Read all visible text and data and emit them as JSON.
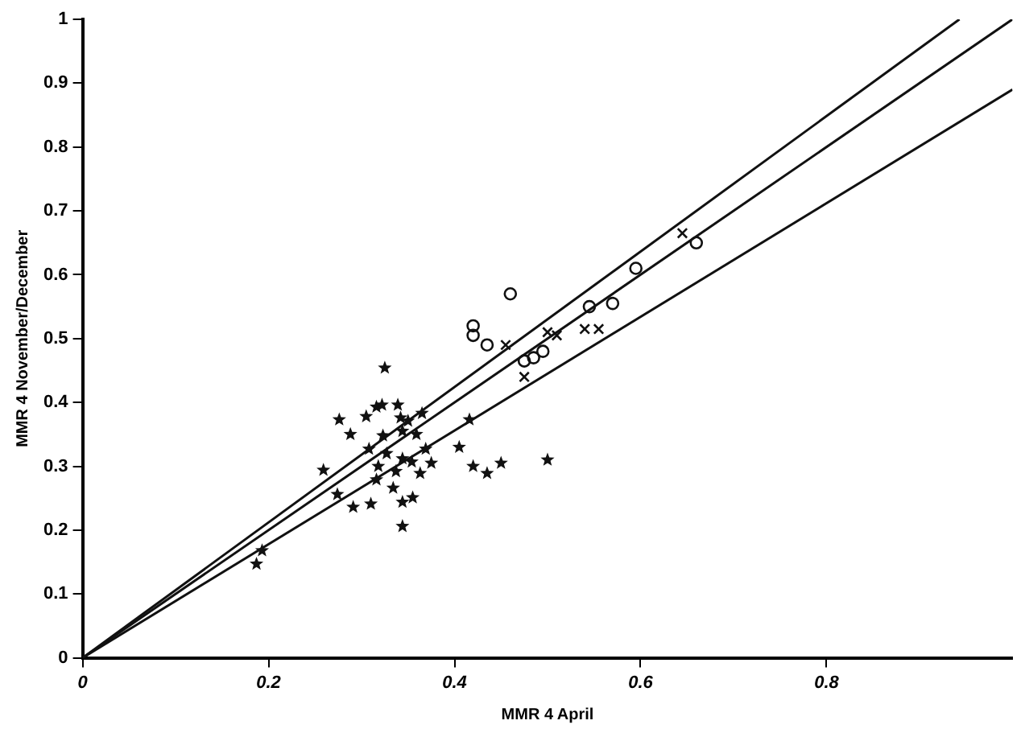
{
  "chart_data": {
    "type": "scatter",
    "xlabel": "MMR 4 April",
    "ylabel": "MMR 4 November/December",
    "xlim": [
      0,
      1
    ],
    "ylim": [
      0,
      1
    ],
    "xticks": [
      0,
      0.2,
      0.4,
      0.6,
      0.8
    ],
    "yticks": [
      0,
      0.1,
      0.2,
      0.3,
      0.4,
      0.5,
      0.6,
      0.7,
      0.8,
      0.9,
      1
    ],
    "grid": false,
    "legend": false,
    "series": [
      {
        "type": "scatter",
        "marker": "star",
        "color": "#111111",
        "x": [
          0.325,
          0.276,
          0.305,
          0.316,
          0.322,
          0.339,
          0.288,
          0.342,
          0.35,
          0.365,
          0.416,
          0.323,
          0.344,
          0.359,
          0.308,
          0.369,
          0.405,
          0.259,
          0.327,
          0.344,
          0.354,
          0.375,
          0.42,
          0.435,
          0.45,
          0.5,
          0.318,
          0.337,
          0.363,
          0.316,
          0.334,
          0.274,
          0.291,
          0.31,
          0.344,
          0.355,
          0.344,
          0.193,
          0.187
        ],
        "values": [
          0.454,
          0.373,
          0.378,
          0.393,
          0.396,
          0.396,
          0.35,
          0.376,
          0.371,
          0.383,
          0.373,
          0.348,
          0.355,
          0.35,
          0.327,
          0.327,
          0.33,
          0.294,
          0.32,
          0.312,
          0.307,
          0.305,
          0.3,
          0.289,
          0.305,
          0.31,
          0.3,
          0.292,
          0.289,
          0.279,
          0.266,
          0.256,
          0.236,
          0.241,
          0.244,
          0.251,
          0.206,
          0.168,
          0.147
        ]
      },
      {
        "type": "scatter",
        "marker": "circle",
        "color": "#111111",
        "x": [
          0.66,
          0.595,
          0.57,
          0.545,
          0.46,
          0.42,
          0.42,
          0.435,
          0.475,
          0.485,
          0.495
        ],
        "values": [
          0.65,
          0.61,
          0.555,
          0.55,
          0.57,
          0.52,
          0.505,
          0.49,
          0.465,
          0.47,
          0.48
        ]
      },
      {
        "type": "scatter",
        "marker": "cross",
        "color": "#111111",
        "x": [
          0.645,
          0.54,
          0.555,
          0.455,
          0.475,
          0.5,
          0.51
        ],
        "values": [
          0.665,
          0.515,
          0.515,
          0.49,
          0.44,
          0.51,
          0.505
        ]
      },
      {
        "type": "line",
        "marker": "none",
        "color": "#111111",
        "x": [
          0,
          0.943
        ],
        "values": [
          0,
          1
        ]
      },
      {
        "type": "line",
        "marker": "none",
        "color": "#111111",
        "x": [
          0,
          1
        ],
        "values": [
          0,
          1
        ]
      },
      {
        "type": "line",
        "marker": "none",
        "color": "#111111",
        "x": [
          0,
          1
        ],
        "values": [
          0,
          0.89
        ]
      }
    ]
  }
}
